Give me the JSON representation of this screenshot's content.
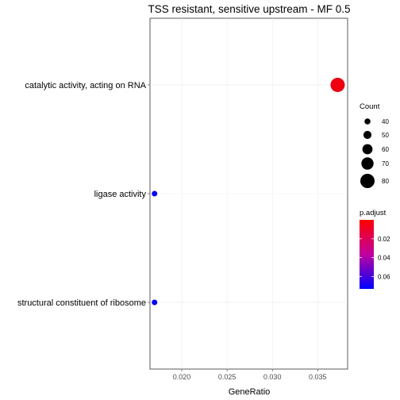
{
  "chart_data": {
    "type": "scatter",
    "title": "TSS resistant, sensitive upstream - MF 0.5",
    "xlabel": "GeneRatio",
    "ylabel": "",
    "xlim": [
      0.0165,
      0.0383
    ],
    "x_ticks": [
      0.02,
      0.025,
      0.03,
      0.035
    ],
    "x_tick_labels": [
      "0.020",
      "0.025",
      "0.030",
      "0.035"
    ],
    "grid": true,
    "categories": [
      "catalytic activity, acting on RNA",
      "ligase activity",
      "structural constituent of ribosome"
    ],
    "points": [
      {
        "category": "catalytic activity, acting on RNA",
        "x": 0.0372,
        "count": 80,
        "p_adjust": 0.005
      },
      {
        "category": "ligase activity",
        "x": 0.017,
        "count": 38,
        "p_adjust": 0.07
      },
      {
        "category": "structural constituent of ribosome",
        "x": 0.017,
        "count": 38,
        "p_adjust": 0.07
      }
    ],
    "legend_count": {
      "title": "Count",
      "values": [
        40,
        50,
        60,
        70,
        80
      ],
      "labels": [
        "40",
        "50",
        "60",
        "70",
        "80"
      ]
    },
    "legend_padjust": {
      "title": "p.adjust",
      "range": [
        0.0,
        0.073
      ],
      "ticks": [
        0.02,
        0.04,
        0.06
      ],
      "tick_labels": [
        "0.02",
        "0.04",
        "0.06"
      ],
      "low_color": "#ff0000",
      "high_color": "#0000ff"
    },
    "legend_placement": "right"
  }
}
